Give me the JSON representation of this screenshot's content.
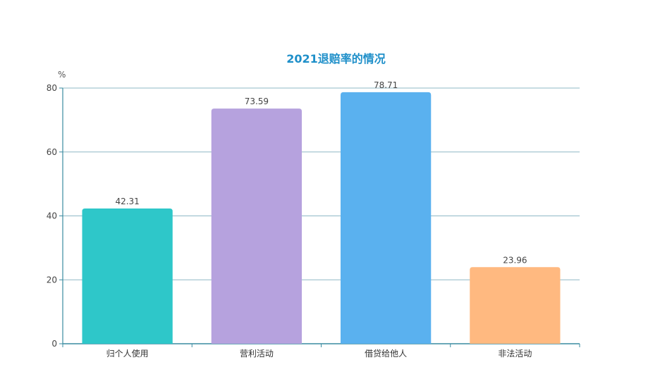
{
  "chart_data": {
    "type": "bar",
    "title": "2021退赔率的情况",
    "y_unit_label": "%",
    "categories": [
      "归个人使用",
      "营利活动",
      "借贷给他人",
      "非法活动"
    ],
    "values": [
      42.31,
      73.59,
      78.71,
      23.96
    ],
    "value_labels": [
      "42.31",
      "73.59",
      "78.71",
      "23.96"
    ],
    "bar_colors": [
      "#2ec7c9",
      "#b6a2de",
      "#5ab1ef",
      "#ffb980"
    ],
    "ylim": [
      0,
      80
    ],
    "yticks": [
      0,
      20,
      40,
      60,
      80
    ],
    "ytick_labels": [
      "0",
      "20",
      "40",
      "60",
      "80"
    ],
    "grid": true,
    "axis_color": "#3a8ba0",
    "grid_color": "#8fb8c6",
    "title_color": "#1e8fc9"
  }
}
